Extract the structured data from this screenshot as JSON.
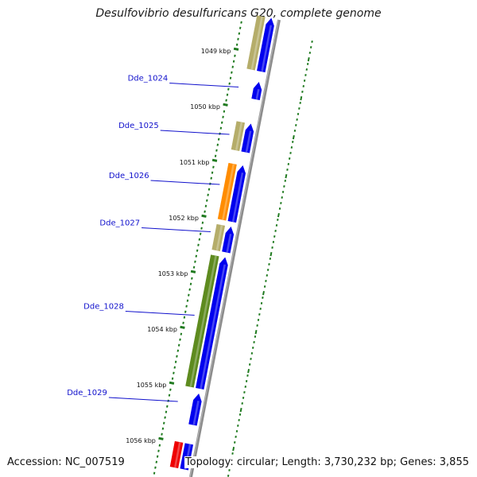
{
  "title": "Desulfovibrio desulfuricans G20, complete genome",
  "footer": {
    "accession": "Accession: NC_007519",
    "summary": "Topology: circular; Length: 3,730,232 bp; Genes: 3,855"
  },
  "colors": {
    "backbone": "#8c8c8c",
    "cds": "#0000ee",
    "tan": "#b5ad6a",
    "orange": "#ff8c00",
    "olive": "#5e8b1f",
    "red": "#ee0000",
    "tick": "#1f7a1f",
    "label": "#1010cc"
  },
  "kbp_ticks": [
    {
      "kbp": 1049,
      "label": "1049 kbp"
    },
    {
      "kbp": 1050,
      "label": "1050 kbp"
    },
    {
      "kbp": 1051,
      "label": "1051 kbp"
    },
    {
      "kbp": 1052,
      "label": "1052 kbp"
    },
    {
      "kbp": 1053,
      "label": "1053 kbp"
    },
    {
      "kbp": 1054,
      "label": "1054 kbp"
    },
    {
      "kbp": 1055,
      "label": "1055 kbp"
    },
    {
      "kbp": 1056,
      "label": "1056 kbp"
    }
  ],
  "gene_labels": [
    {
      "id": "Dde_1024",
      "kbp": 1049.6
    },
    {
      "id": "Dde_1025",
      "kbp": 1050.45
    },
    {
      "id": "Dde_1026",
      "kbp": 1051.35
    },
    {
      "id": "Dde_1027",
      "kbp": 1052.2
    },
    {
      "id": "Dde_1028",
      "kbp": 1053.7
    },
    {
      "id": "Dde_1029",
      "kbp": 1055.25
    }
  ],
  "features": [
    {
      "start": 1048.3,
      "end": 1049.25,
      "track": "cds",
      "color": "#0000ee",
      "arrow": true
    },
    {
      "start": 1048.3,
      "end": 1049.25,
      "track": "outer",
      "color": "#b5ad6a"
    },
    {
      "start": 1049.45,
      "end": 1049.75,
      "track": "cds",
      "color": "#0000ee",
      "arrow": true
    },
    {
      "start": 1050.2,
      "end": 1050.7,
      "track": "cds",
      "color": "#0000ee",
      "arrow": true
    },
    {
      "start": 1050.2,
      "end": 1050.7,
      "track": "outer",
      "color": "#b5ad6a"
    },
    {
      "start": 1050.95,
      "end": 1051.95,
      "track": "cds",
      "color": "#0000ee",
      "arrow": true
    },
    {
      "start": 1050.95,
      "end": 1051.95,
      "track": "outer",
      "color": "#ff8c00"
    },
    {
      "start": 1052.05,
      "end": 1052.5,
      "track": "cds",
      "color": "#0000ee",
      "arrow": true
    },
    {
      "start": 1052.05,
      "end": 1052.5,
      "track": "outer",
      "color": "#b5ad6a"
    },
    {
      "start": 1052.6,
      "end": 1054.95,
      "track": "cds",
      "color": "#0000ee",
      "arrow": true
    },
    {
      "start": 1052.6,
      "end": 1054.95,
      "track": "outer",
      "color": "#5e8b1f"
    },
    {
      "start": 1055.05,
      "end": 1055.6,
      "track": "cds",
      "color": "#0000ee",
      "arrow": true
    },
    {
      "start": 1055.95,
      "end": 1056.4,
      "track": "cds",
      "color": "#0000ee"
    },
    {
      "start": 1055.95,
      "end": 1056.4,
      "track": "outer",
      "color": "#ee0000"
    }
  ]
}
